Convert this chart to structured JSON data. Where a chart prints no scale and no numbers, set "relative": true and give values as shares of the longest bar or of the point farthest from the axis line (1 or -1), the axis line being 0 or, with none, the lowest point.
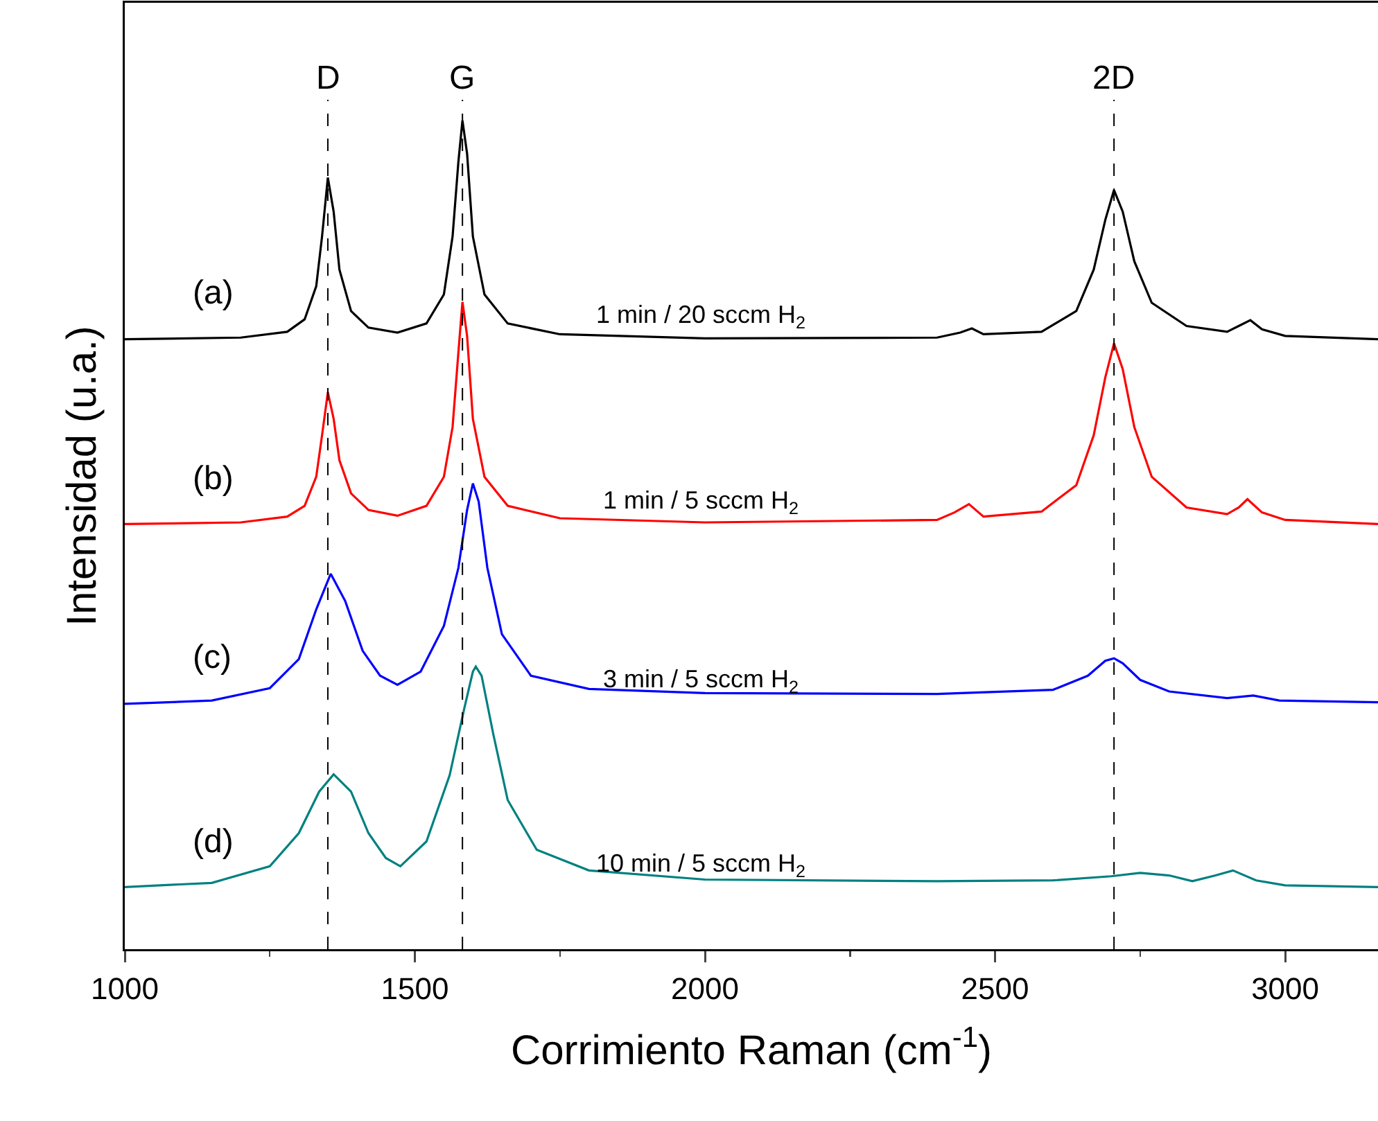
{
  "chart_data": {
    "type": "line",
    "relative": true,
    "xlabel": "Corrimiento Raman (cm$^{-1}$)",
    "ylabel": "Intensidad (u.a.)",
    "xlim": [
      1000,
      3160
    ],
    "xticks": [
      1000,
      1500,
      2000,
      2500,
      3000
    ],
    "tick_labels": "x",
    "grid": false,
    "marker": "none",
    "line_style": "solid",
    "series": [
      {
        "color": "#000000",
        "x": [
          1000,
          1200,
          1280,
          1310,
          1330,
          1340,
          1350,
          1360,
          1370,
          1390,
          1420,
          1470,
          1520,
          1550,
          1565,
          1575,
          1582,
          1590,
          1600,
          1620,
          1660,
          1750,
          2000,
          2400,
          2440,
          2460,
          2480,
          2580,
          2640,
          2670,
          2690,
          2705,
          2720,
          2740,
          2770,
          2830,
          2900,
          2920,
          2940,
          2960,
          3000,
          3160
        ],
        "values": [
          0.736,
          0.738,
          0.745,
          0.76,
          0.8,
          0.86,
          0.931,
          0.89,
          0.82,
          0.77,
          0.75,
          0.744,
          0.755,
          0.79,
          0.86,
          0.95,
          1.0,
          0.96,
          0.86,
          0.79,
          0.755,
          0.742,
          0.737,
          0.738,
          0.744,
          0.749,
          0.742,
          0.745,
          0.77,
          0.82,
          0.88,
          0.916,
          0.89,
          0.83,
          0.78,
          0.752,
          0.745,
          0.752,
          0.759,
          0.748,
          0.74,
          0.736
        ]
      },
      {
        "color": "#ff0000",
        "x": [
          1000,
          1200,
          1280,
          1310,
          1330,
          1340,
          1350,
          1360,
          1370,
          1390,
          1420,
          1470,
          1520,
          1550,
          1565,
          1575,
          1582,
          1590,
          1600,
          1620,
          1660,
          1750,
          2000,
          2400,
          2430,
          2455,
          2480,
          2580,
          2640,
          2670,
          2690,
          2705,
          2720,
          2740,
          2770,
          2830,
          2900,
          2920,
          2935,
          2960,
          3000,
          3160
        ],
        "values": [
          0.513,
          0.515,
          0.522,
          0.535,
          0.57,
          0.62,
          0.672,
          0.64,
          0.59,
          0.55,
          0.53,
          0.523,
          0.535,
          0.57,
          0.63,
          0.72,
          0.781,
          0.74,
          0.64,
          0.57,
          0.535,
          0.52,
          0.515,
          0.518,
          0.527,
          0.537,
          0.522,
          0.528,
          0.56,
          0.62,
          0.69,
          0.731,
          0.7,
          0.63,
          0.57,
          0.533,
          0.525,
          0.533,
          0.543,
          0.527,
          0.518,
          0.513
        ]
      },
      {
        "color": "#0000ff",
        "x": [
          1000,
          1150,
          1250,
          1300,
          1330,
          1355,
          1380,
          1410,
          1440,
          1470,
          1510,
          1550,
          1575,
          1590,
          1600,
          1610,
          1625,
          1650,
          1700,
          1800,
          2000,
          2400,
          2600,
          2660,
          2690,
          2705,
          2720,
          2750,
          2800,
          2900,
          2945,
          2990,
          3160
        ],
        "values": [
          0.296,
          0.3,
          0.315,
          0.35,
          0.41,
          0.453,
          0.42,
          0.36,
          0.33,
          0.319,
          0.335,
          0.39,
          0.46,
          0.53,
          0.562,
          0.54,
          0.46,
          0.38,
          0.33,
          0.314,
          0.309,
          0.308,
          0.313,
          0.33,
          0.348,
          0.351,
          0.345,
          0.325,
          0.311,
          0.303,
          0.306,
          0.3,
          0.298
        ]
      },
      {
        "color": "#008080",
        "x": [
          1000,
          1150,
          1250,
          1300,
          1335,
          1360,
          1390,
          1420,
          1450,
          1475,
          1520,
          1560,
          1585,
          1600,
          1605,
          1615,
          1635,
          1660,
          1710,
          1800,
          2000,
          2400,
          2600,
          2700,
          2750,
          2800,
          2840,
          2880,
          2910,
          2950,
          3000,
          3160
        ],
        "values": [
          0.075,
          0.08,
          0.1,
          0.14,
          0.19,
          0.211,
          0.19,
          0.14,
          0.11,
          0.1,
          0.13,
          0.21,
          0.29,
          0.335,
          0.341,
          0.33,
          0.26,
          0.18,
          0.12,
          0.095,
          0.084,
          0.082,
          0.083,
          0.088,
          0.092,
          0.089,
          0.082,
          0.089,
          0.095,
          0.083,
          0.077,
          0.075
        ]
      }
    ],
    "ref_lines": [
      {
        "axis": "x",
        "value": 1350,
        "label": "D",
        "color": "#000000",
        "line_style": "dashed"
      },
      {
        "axis": "x",
        "value": 1582,
        "label": "G",
        "color": "#000000",
        "line_style": "dashed"
      },
      {
        "axis": "x",
        "value": 2705,
        "label": "2D",
        "color": "#000000",
        "line_style": "dashed"
      }
    ],
    "annotations": [
      "(a)",
      "(b)",
      "(c)",
      "(d)",
      "1 min / 20 sccm H$_{2}$",
      "1 min / 5 sccm H$_{2}$",
      "3 min / 5 sccm H$_{2}$",
      "10 min / 5 sccm H$_{2}$"
    ]
  }
}
